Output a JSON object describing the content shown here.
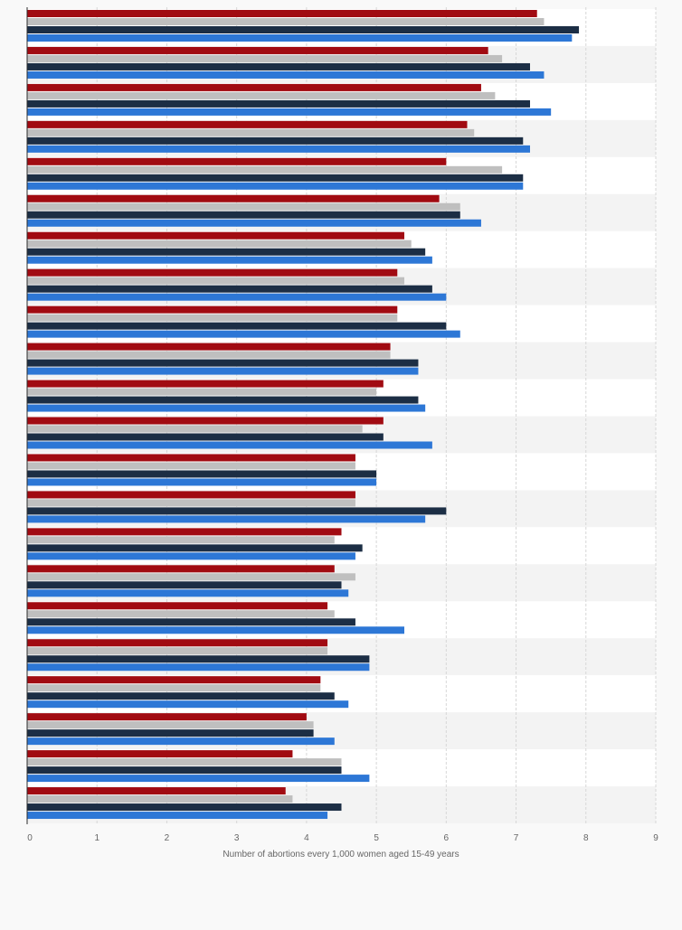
{
  "chart_data": {
    "type": "bar",
    "orientation": "horizontal",
    "xlabel": "Number of abortions every 1,000 women aged 15-49 years",
    "xlim": [
      0,
      9
    ],
    "x_ticks": [
      "0",
      "1",
      "2",
      "3",
      "4",
      "5",
      "6",
      "7",
      "8",
      "9"
    ],
    "grid": true,
    "legend": "none",
    "category_count": 22,
    "colors": [
      "#a10b12",
      "#bfbfbf",
      "#1c2e45",
      "#2d77d6"
    ],
    "series": [
      {
        "values": [
          7.3,
          6.6,
          6.5,
          6.3,
          6.0,
          5.9,
          5.4,
          5.3,
          5.3,
          5.2,
          5.1,
          5.1,
          4.7,
          4.7,
          4.5,
          4.4,
          4.3,
          4.3,
          4.2,
          4.0,
          3.8,
          3.7
        ]
      },
      {
        "values": [
          7.4,
          6.8,
          6.7,
          6.4,
          6.8,
          6.2,
          5.5,
          5.4,
          5.3,
          5.2,
          5.0,
          4.8,
          4.7,
          4.7,
          4.4,
          4.7,
          4.4,
          4.3,
          4.2,
          4.1,
          4.5,
          3.8
        ]
      },
      {
        "values": [
          7.9,
          7.2,
          7.2,
          7.1,
          7.1,
          6.2,
          5.7,
          5.8,
          6.0,
          5.6,
          5.6,
          5.1,
          5.0,
          6.0,
          4.8,
          4.5,
          4.7,
          4.9,
          4.4,
          4.1,
          4.5,
          4.5
        ]
      },
      {
        "values": [
          7.8,
          7.4,
          7.5,
          7.2,
          7.1,
          6.5,
          5.8,
          6.0,
          6.2,
          5.6,
          5.7,
          5.8,
          5.0,
          5.7,
          4.7,
          4.6,
          5.4,
          4.9,
          4.6,
          4.4,
          4.9,
          4.3
        ]
      }
    ]
  }
}
